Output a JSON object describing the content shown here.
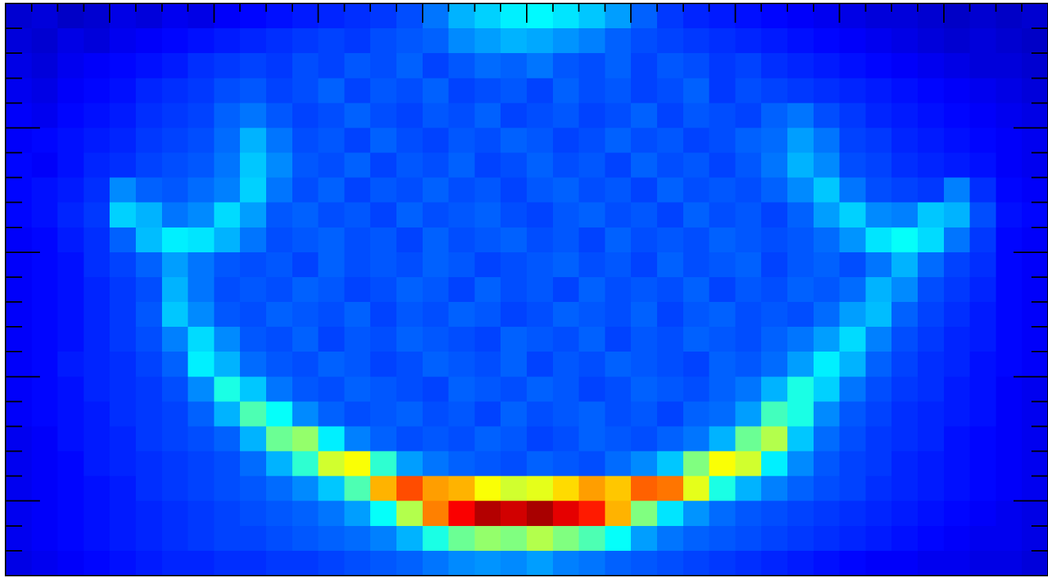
{
  "chart_data": {
    "type": "heatmap",
    "colormap": "jet",
    "clim": [
      0,
      100
    ],
    "xlim": [
      0,
      40
    ],
    "ylim": [
      0,
      23
    ],
    "xticks": [
      4,
      8,
      12,
      16,
      20,
      24,
      28,
      32,
      36
    ],
    "xminor_ticks": [
      1,
      2,
      3,
      5,
      6,
      7,
      9,
      10,
      11,
      13,
      14,
      15,
      17,
      18,
      19,
      21,
      22,
      23,
      25,
      26,
      27,
      29,
      30,
      31,
      33,
      34,
      35,
      37,
      38,
      39
    ],
    "yticks": [
      5,
      10,
      15,
      20
    ],
    "yminor_ticks": [
      1,
      2,
      3,
      4,
      6,
      7,
      8,
      9,
      11,
      12,
      13,
      14,
      16,
      17,
      18,
      19,
      21,
      22
    ],
    "z": [
      [
        8,
        9,
        7,
        8,
        10,
        9,
        11,
        10,
        12,
        13,
        14,
        15,
        16,
        17,
        18,
        20,
        24,
        30,
        33,
        36,
        37,
        35,
        32,
        28,
        22,
        18,
        16,
        15,
        14,
        13,
        12,
        11,
        10,
        9,
        9,
        8,
        7,
        8,
        7,
        8
      ],
      [
        9,
        8,
        10,
        9,
        11,
        12,
        13,
        14,
        15,
        16,
        17,
        18,
        19,
        18,
        20,
        21,
        22,
        26,
        28,
        30,
        29,
        27,
        25,
        22,
        20,
        19,
        18,
        17,
        16,
        15,
        14,
        13,
        12,
        11,
        10,
        9,
        8,
        9,
        8,
        7
      ],
      [
        10,
        9,
        11,
        12,
        13,
        14,
        15,
        17,
        18,
        19,
        18,
        20,
        19,
        21,
        20,
        22,
        19,
        21,
        23,
        22,
        24,
        21,
        20,
        22,
        19,
        21,
        20,
        18,
        19,
        17,
        16,
        15,
        14,
        13,
        12,
        11,
        10,
        9,
        9,
        8
      ],
      [
        11,
        10,
        12,
        13,
        14,
        16,
        17,
        18,
        20,
        21,
        19,
        20,
        22,
        19,
        21,
        20,
        22,
        19,
        20,
        21,
        19,
        22,
        20,
        21,
        19,
        20,
        22,
        18,
        20,
        19,
        18,
        17,
        16,
        15,
        14,
        13,
        12,
        11,
        10,
        9
      ],
      [
        12,
        11,
        13,
        14,
        15,
        17,
        18,
        19,
        22,
        24,
        21,
        19,
        20,
        22,
        20,
        19,
        21,
        20,
        22,
        19,
        20,
        21,
        19,
        20,
        22,
        19,
        21,
        20,
        19,
        22,
        24,
        20,
        18,
        16,
        15,
        14,
        13,
        12,
        11,
        10
      ],
      [
        12,
        13,
        14,
        15,
        16,
        18,
        19,
        20,
        23,
        30,
        24,
        20,
        21,
        19,
        22,
        20,
        19,
        21,
        20,
        22,
        21,
        19,
        20,
        22,
        20,
        21,
        19,
        20,
        22,
        23,
        28,
        24,
        19,
        18,
        16,
        15,
        14,
        13,
        12,
        11
      ],
      [
        13,
        12,
        14,
        16,
        17,
        19,
        20,
        21,
        24,
        32,
        26,
        21,
        20,
        22,
        19,
        21,
        20,
        22,
        19,
        20,
        22,
        20,
        21,
        19,
        22,
        20,
        21,
        19,
        21,
        24,
        30,
        26,
        20,
        19,
        17,
        16,
        15,
        14,
        12,
        11
      ],
      [
        13,
        14,
        15,
        17,
        26,
        22,
        21,
        23,
        25,
        33,
        24,
        20,
        22,
        19,
        21,
        20,
        22,
        20,
        21,
        19,
        21,
        22,
        20,
        21,
        19,
        22,
        20,
        21,
        20,
        22,
        26,
        32,
        24,
        20,
        19,
        18,
        25,
        17,
        13,
        12
      ],
      [
        13,
        14,
        16,
        18,
        33,
        30,
        24,
        26,
        34,
        28,
        21,
        22,
        20,
        21,
        19,
        22,
        20,
        21,
        22,
        20,
        19,
        21,
        22,
        20,
        21,
        19,
        22,
        20,
        21,
        19,
        22,
        28,
        33,
        26,
        25,
        32,
        30,
        20,
        14,
        13
      ],
      [
        12,
        13,
        15,
        17,
        22,
        31,
        36,
        35,
        30,
        24,
        20,
        21,
        22,
        20,
        21,
        19,
        22,
        20,
        21,
        22,
        20,
        21,
        19,
        22,
        20,
        21,
        20,
        22,
        21,
        20,
        21,
        23,
        27,
        35,
        38,
        34,
        24,
        18,
        13,
        12
      ],
      [
        12,
        13,
        14,
        17,
        19,
        22,
        28,
        24,
        21,
        20,
        21,
        19,
        22,
        20,
        21,
        20,
        22,
        21,
        19,
        20,
        21,
        22,
        20,
        21,
        19,
        22,
        20,
        21,
        22,
        19,
        21,
        22,
        20,
        24,
        30,
        23,
        19,
        17,
        13,
        12
      ],
      [
        12,
        13,
        14,
        16,
        18,
        20,
        30,
        24,
        20,
        21,
        20,
        22,
        21,
        19,
        20,
        22,
        21,
        19,
        22,
        20,
        21,
        19,
        22,
        20,
        21,
        20,
        22,
        19,
        21,
        20,
        22,
        21,
        23,
        30,
        26,
        20,
        18,
        16,
        13,
        12
      ],
      [
        12,
        13,
        14,
        16,
        18,
        21,
        32,
        26,
        21,
        20,
        22,
        21,
        20,
        22,
        19,
        21,
        20,
        22,
        21,
        19,
        20,
        22,
        21,
        20,
        22,
        19,
        21,
        22,
        20,
        21,
        20,
        23,
        28,
        31,
        22,
        19,
        17,
        15,
        13,
        12
      ],
      [
        12,
        13,
        14,
        16,
        18,
        20,
        25,
        34,
        26,
        21,
        20,
        22,
        19,
        21,
        20,
        22,
        21,
        20,
        19,
        22,
        21,
        20,
        22,
        19,
        21,
        20,
        22,
        21,
        20,
        22,
        24,
        28,
        34,
        25,
        20,
        18,
        16,
        15,
        13,
        12
      ],
      [
        12,
        13,
        15,
        16,
        17,
        19,
        22,
        36,
        30,
        23,
        21,
        20,
        22,
        21,
        19,
        20,
        22,
        21,
        20,
        22,
        19,
        21,
        20,
        22,
        21,
        20,
        19,
        22,
        21,
        23,
        28,
        36,
        30,
        22,
        19,
        17,
        16,
        14,
        13,
        12
      ],
      [
        12,
        13,
        14,
        16,
        17,
        18,
        20,
        26,
        40,
        32,
        24,
        21,
        20,
        22,
        21,
        20,
        19,
        22,
        21,
        20,
        22,
        21,
        19,
        20,
        22,
        21,
        20,
        22,
        24,
        30,
        40,
        33,
        24,
        20,
        18,
        17,
        15,
        14,
        12,
        11
      ],
      [
        12,
        13,
        14,
        15,
        17,
        18,
        19,
        22,
        30,
        45,
        38,
        26,
        22,
        20,
        21,
        22,
        20,
        21,
        19,
        22,
        20,
        21,
        22,
        20,
        21,
        19,
        22,
        23,
        28,
        44,
        40,
        26,
        21,
        19,
        17,
        16,
        15,
        14,
        12,
        11
      ],
      [
        11,
        12,
        14,
        15,
        16,
        18,
        19,
        20,
        22,
        30,
        48,
        52,
        36,
        25,
        22,
        20,
        21,
        20,
        22,
        21,
        19,
        20,
        22,
        21,
        20,
        22,
        24,
        30,
        48,
        55,
        32,
        23,
        20,
        18,
        17,
        16,
        14,
        13,
        12,
        11
      ],
      [
        11,
        12,
        13,
        15,
        16,
        17,
        18,
        19,
        20,
        23,
        30,
        42,
        58,
        62,
        42,
        28,
        24,
        22,
        21,
        20,
        22,
        21,
        20,
        23,
        26,
        32,
        50,
        62,
        58,
        36,
        26,
        21,
        19,
        18,
        16,
        15,
        14,
        13,
        12,
        11
      ],
      [
        11,
        12,
        13,
        14,
        15,
        17,
        18,
        19,
        20,
        21,
        23,
        26,
        32,
        45,
        70,
        80,
        72,
        70,
        62,
        58,
        60,
        66,
        72,
        68,
        78,
        76,
        60,
        40,
        30,
        25,
        22,
        20,
        19,
        17,
        16,
        15,
        14,
        13,
        12,
        11
      ],
      [
        11,
        12,
        13,
        14,
        15,
        16,
        17,
        18,
        19,
        20,
        21,
        22,
        24,
        28,
        38,
        55,
        75,
        88,
        95,
        92,
        96,
        90,
        85,
        70,
        50,
        35,
        27,
        23,
        21,
        20,
        19,
        18,
        17,
        16,
        15,
        14,
        13,
        12,
        11,
        10
      ],
      [
        11,
        12,
        13,
        14,
        15,
        16,
        17,
        18,
        19,
        19,
        20,
        21,
        22,
        23,
        25,
        30,
        40,
        48,
        52,
        50,
        55,
        50,
        45,
        38,
        28,
        24,
        22,
        21,
        20,
        19,
        18,
        17,
        16,
        15,
        14,
        13,
        12,
        11,
        11,
        10
      ],
      [
        10,
        11,
        12,
        13,
        14,
        15,
        16,
        16,
        17,
        17,
        18,
        18,
        19,
        20,
        21,
        22,
        24,
        26,
        27,
        26,
        28,
        25,
        24,
        22,
        21,
        20,
        19,
        18,
        17,
        16,
        15,
        14,
        13,
        12,
        12,
        11,
        11,
        10,
        10,
        9
      ]
    ]
  }
}
